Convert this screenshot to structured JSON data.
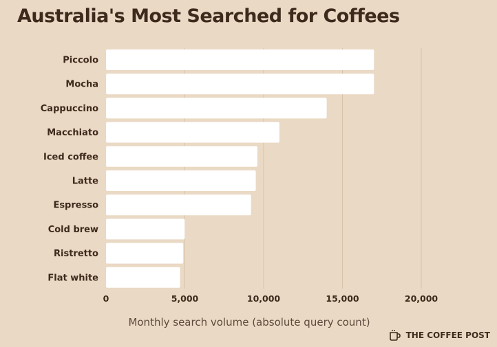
{
  "title": "Australia's Most Searched for Coffees",
  "brand": "THE COFFEE POST",
  "chart_data": {
    "type": "bar",
    "orientation": "horizontal",
    "categories": [
      "Piccolo",
      "Mocha",
      "Cappuccino",
      "Macchiato",
      "Iced coffee",
      "Latte",
      "Espresso",
      "Cold brew",
      "Ristretto",
      "Flat white"
    ],
    "values": [
      17000,
      17000,
      14000,
      11000,
      9600,
      9500,
      9200,
      5000,
      4900,
      4700
    ],
    "xlabel": "Monthly search volume (absolute query count)",
    "ylabel": "",
    "xlim": [
      0,
      24000
    ],
    "xticks": [
      0,
      5000,
      10000,
      15000,
      20000
    ],
    "xtick_labels": [
      "0",
      "5,000",
      "10,000",
      "15,000",
      "20,000"
    ],
    "grid": "vertical",
    "colors": {
      "bar": "#ffffff",
      "background": "#ead9c4",
      "grid": "#d8c3aa",
      "text": "#3d2a1c",
      "axis_label": "#5e4a3c"
    }
  }
}
